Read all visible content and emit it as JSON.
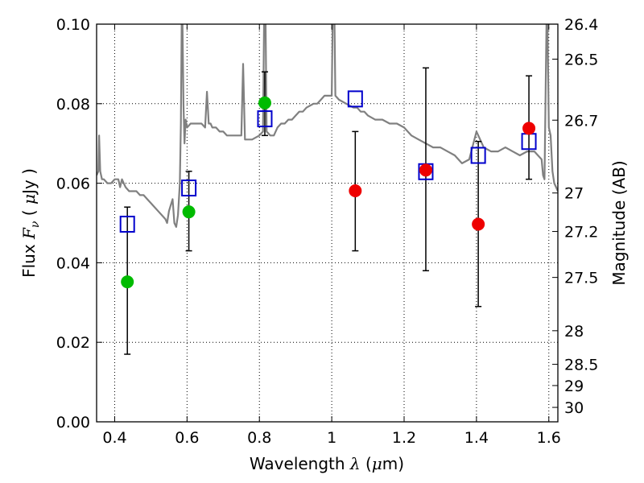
{
  "chart_data": {
    "type": "scatter",
    "title": "",
    "xlabel": {
      "pre": "Wavelength  ",
      "var": "λ",
      "post": " (",
      "mu": "μ",
      "unit": "m)"
    },
    "ylabel": {
      "pre": "Flux  ",
      "var": "F",
      "sub": "ν",
      "post": "  ( ",
      "mu": "μ",
      "unit": "Jy )"
    },
    "y2label": "Magnitude (AB)",
    "xlim": [
      0.35,
      1.625
    ],
    "ylim": [
      0.0,
      0.1
    ],
    "grid": true,
    "x_ticks": [
      0.4,
      0.6,
      0.8,
      1.0,
      1.2,
      1.4,
      1.6
    ],
    "x_tick_labels": [
      "0.4",
      "0.6",
      "0.8",
      "1",
      "1.2",
      "1.4",
      "1.6"
    ],
    "y_ticks": [
      0.0,
      0.02,
      0.04,
      0.06,
      0.08,
      0.1
    ],
    "y_tick_labels": [
      "0.00",
      "0.02",
      "0.04",
      "0.06",
      "0.08",
      "0.10"
    ],
    "y2_ticks": [
      26.4,
      26.5,
      26.7,
      27,
      27.2,
      27.5,
      28,
      28.5,
      29,
      30
    ],
    "y2_tick_labels": [
      "26.4",
      "26.5",
      "26.7",
      "27",
      "27.2",
      "27.5",
      "28",
      "28.5",
      "29",
      "30"
    ],
    "colors": {
      "spectrum": "#808080",
      "model": "#0000cc",
      "optical": "#00bb00",
      "infrared": "#ee0000",
      "errorbar": "#000000"
    },
    "spectrum": {
      "x": [
        0.35,
        0.355,
        0.357,
        0.36,
        0.365,
        0.37,
        0.38,
        0.39,
        0.4,
        0.41,
        0.415,
        0.42,
        0.425,
        0.43,
        0.44,
        0.45,
        0.46,
        0.47,
        0.48,
        0.49,
        0.5,
        0.51,
        0.52,
        0.53,
        0.54,
        0.545,
        0.55,
        0.56,
        0.565,
        0.57,
        0.575,
        0.58,
        0.583,
        0.586,
        0.59,
        0.593,
        0.596,
        0.6,
        0.61,
        0.62,
        0.63,
        0.64,
        0.65,
        0.655,
        0.66,
        0.665,
        0.67,
        0.68,
        0.69,
        0.7,
        0.71,
        0.72,
        0.73,
        0.74,
        0.75,
        0.755,
        0.76,
        0.77,
        0.78,
        0.8,
        0.81,
        0.815,
        0.82,
        0.83,
        0.84,
        0.85,
        0.86,
        0.87,
        0.88,
        0.89,
        0.9,
        0.91,
        0.92,
        0.93,
        0.95,
        0.96,
        0.97,
        0.98,
        0.99,
        1.0,
        1.005,
        1.01,
        1.02,
        1.04,
        1.06,
        1.07,
        1.08,
        1.09,
        1.1,
        1.12,
        1.14,
        1.16,
        1.18,
        1.2,
        1.22,
        1.24,
        1.26,
        1.28,
        1.3,
        1.32,
        1.34,
        1.36,
        1.38,
        1.4,
        1.42,
        1.44,
        1.46,
        1.48,
        1.5,
        1.52,
        1.54,
        1.56,
        1.58,
        1.584,
        1.588,
        1.595,
        1.6,
        1.605,
        1.61,
        1.615,
        1.62,
        1.625
      ],
      "y": [
        0.062,
        0.063,
        0.072,
        0.063,
        0.061,
        0.061,
        0.06,
        0.06,
        0.061,
        0.061,
        0.059,
        0.061,
        0.06,
        0.059,
        0.058,
        0.058,
        0.058,
        0.057,
        0.057,
        0.056,
        0.055,
        0.054,
        0.053,
        0.052,
        0.051,
        0.05,
        0.053,
        0.056,
        0.05,
        0.049,
        0.052,
        0.06,
        0.075,
        0.11,
        0.08,
        0.07,
        0.076,
        0.074,
        0.075,
        0.075,
        0.075,
        0.075,
        0.074,
        0.083,
        0.075,
        0.075,
        0.074,
        0.074,
        0.073,
        0.073,
        0.072,
        0.072,
        0.072,
        0.072,
        0.072,
        0.09,
        0.071,
        0.071,
        0.071,
        0.072,
        0.073,
        0.12,
        0.073,
        0.072,
        0.072,
        0.074,
        0.075,
        0.075,
        0.076,
        0.076,
        0.077,
        0.078,
        0.078,
        0.079,
        0.08,
        0.08,
        0.081,
        0.082,
        0.082,
        0.082,
        0.12,
        0.082,
        0.081,
        0.08,
        0.079,
        0.079,
        0.078,
        0.078,
        0.077,
        0.076,
        0.076,
        0.075,
        0.075,
        0.074,
        0.072,
        0.071,
        0.07,
        0.069,
        0.069,
        0.068,
        0.067,
        0.065,
        0.066,
        0.073,
        0.069,
        0.068,
        0.068,
        0.069,
        0.068,
        0.067,
        0.068,
        0.068,
        0.066,
        0.062,
        0.061,
        0.11,
        0.074,
        0.072,
        0.063,
        0.06,
        0.059,
        0.058
      ]
    },
    "series": [
      {
        "marker": "open-square",
        "x": [
          0.435,
          0.605,
          0.815,
          1.065,
          1.26,
          1.405,
          1.545
        ],
        "y": [
          0.0497,
          0.0588,
          0.0762,
          0.0812,
          0.0629,
          0.067,
          0.0705
        ]
      },
      {
        "marker": "filled-circle",
        "color_key": "optical",
        "x": [
          0.435,
          0.605,
          0.815
        ],
        "y": [
          0.0352,
          0.0528,
          0.0802
        ],
        "err_low": [
          0.017,
          0.043,
          0.072
        ],
        "err_high": [
          0.054,
          0.063,
          0.088
        ]
      },
      {
        "marker": "filled-circle",
        "color_key": "infrared",
        "x": [
          1.065,
          1.26,
          1.405,
          1.545
        ],
        "y": [
          0.0581,
          0.0633,
          0.0497,
          0.0738
        ],
        "err_low": [
          0.043,
          0.038,
          0.029,
          0.061
        ],
        "err_high": [
          0.073,
          0.089,
          0.0705,
          0.087
        ]
      }
    ]
  }
}
